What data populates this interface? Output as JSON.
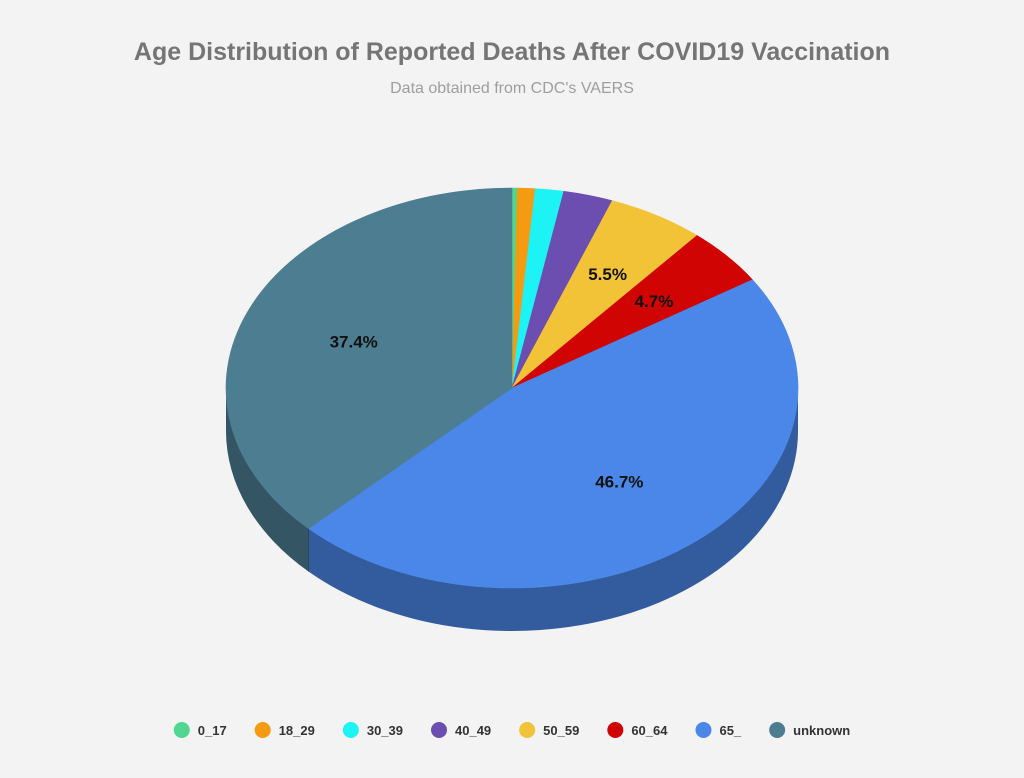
{
  "chart_data": {
    "type": "pie",
    "title": "Age Distribution of Reported Deaths After COVID19 Vaccination",
    "subtitle": "Data obtained from CDC's VAERS",
    "legend_position": "bottom",
    "three_d": true,
    "slices": [
      {
        "name": "0_17",
        "value": 0.3,
        "color": "#50d68e",
        "label": ""
      },
      {
        "name": "18_29",
        "value": 1.0,
        "color": "#f59b12",
        "label": ""
      },
      {
        "name": "30_39",
        "value": 1.6,
        "color": "#1df3f4",
        "label": ""
      },
      {
        "name": "40_49",
        "value": 2.8,
        "color": "#6c4eb0",
        "label": ""
      },
      {
        "name": "50_59",
        "value": 5.5,
        "color": "#f2c336",
        "label": "5.5%"
      },
      {
        "name": "60_64",
        "value": 4.7,
        "color": "#d10404",
        "label": "4.7%"
      },
      {
        "name": "65_",
        "value": 46.7,
        "color": "#4b87e8",
        "label": "46.7%"
      },
      {
        "name": "unknown",
        "value": 37.4,
        "color": "#4d7d91",
        "label": "37.4%"
      }
    ]
  }
}
